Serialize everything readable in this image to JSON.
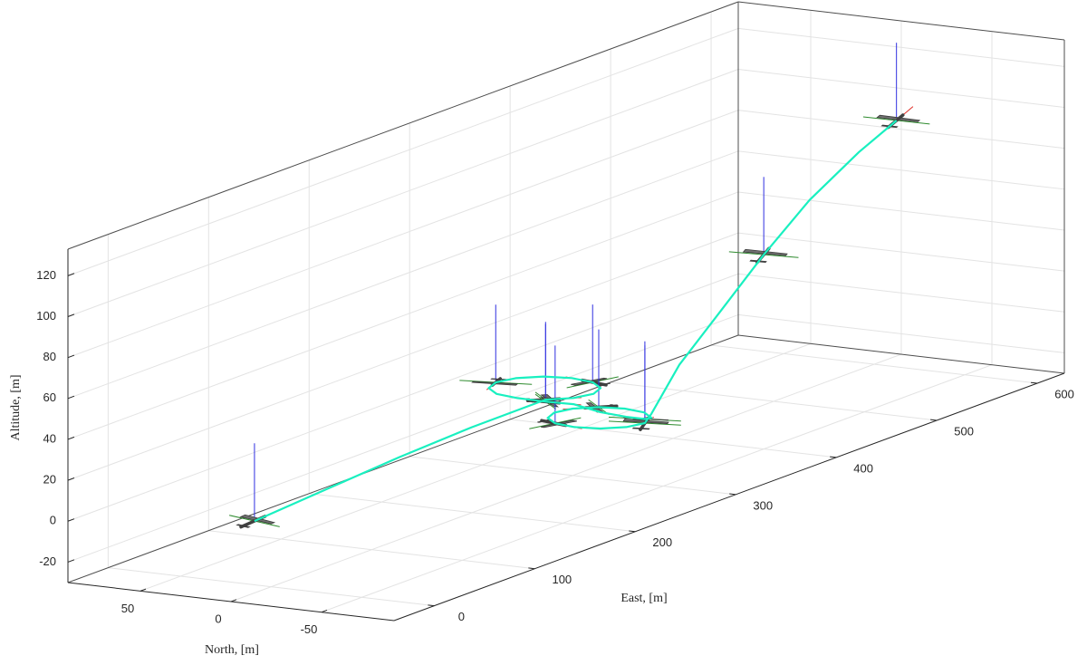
{
  "chart_data": {
    "type": "line3d",
    "xlabel": "East, [m]",
    "ylabel": "North, [m]",
    "zlabel": "Altitude, [m]",
    "xlim": [
      -40,
      627
    ],
    "ylim": [
      -90,
      90
    ],
    "zlim": [
      -30,
      133
    ],
    "xticks": [
      0,
      100,
      200,
      300,
      400,
      500,
      600
    ],
    "yticks": [
      -50,
      0,
      50
    ],
    "zticks": [
      -20,
      0,
      20,
      40,
      60,
      80,
      100,
      120
    ],
    "grid": true,
    "series": [
      {
        "color": "#19f0c0",
        "x": [
          5,
          50,
          95,
          140,
          176.6,
          186.5,
          200,
          213.5,
          223.4,
          227,
          223.4,
          213.5,
          200,
          186.5,
          176.6,
          173,
          176.6,
          186.5,
          193.3,
          202.5,
          215,
          227.5,
          236.7,
          240,
          236.7,
          227.5,
          215,
          202.5,
          193.3,
          190,
          193.3,
          202.5,
          215,
          227.5,
          280,
          340,
          400,
          460,
          520,
          560
        ],
        "y": [
          12,
          -3,
          -18,
          -33,
          -53.5,
          -63.4,
          -67,
          -63.4,
          -53.5,
          -40,
          -26.5,
          -16.6,
          -13,
          -16.6,
          -26.5,
          -40,
          -53.5,
          -63.4,
          -74.5,
          -83.7,
          -87,
          -83.7,
          -74.5,
          -62,
          -49.5,
          -40.3,
          -37,
          -40.3,
          -49.5,
          -62,
          -74.5,
          -83.7,
          -87,
          -83.7,
          -70,
          -60,
          -50,
          -42,
          -36,
          -34.5
        ],
        "z": [
          0,
          9,
          18,
          26,
          35,
          35,
          35,
          35,
          35,
          35,
          35,
          35,
          35,
          35,
          35,
          35,
          34,
          32,
          28,
          25,
          22,
          20,
          20,
          20,
          20,
          20,
          20,
          20,
          20,
          20,
          20,
          20,
          20,
          22,
          35,
          50,
          65,
          80,
          92,
          100
        ]
      }
    ]
  }
}
